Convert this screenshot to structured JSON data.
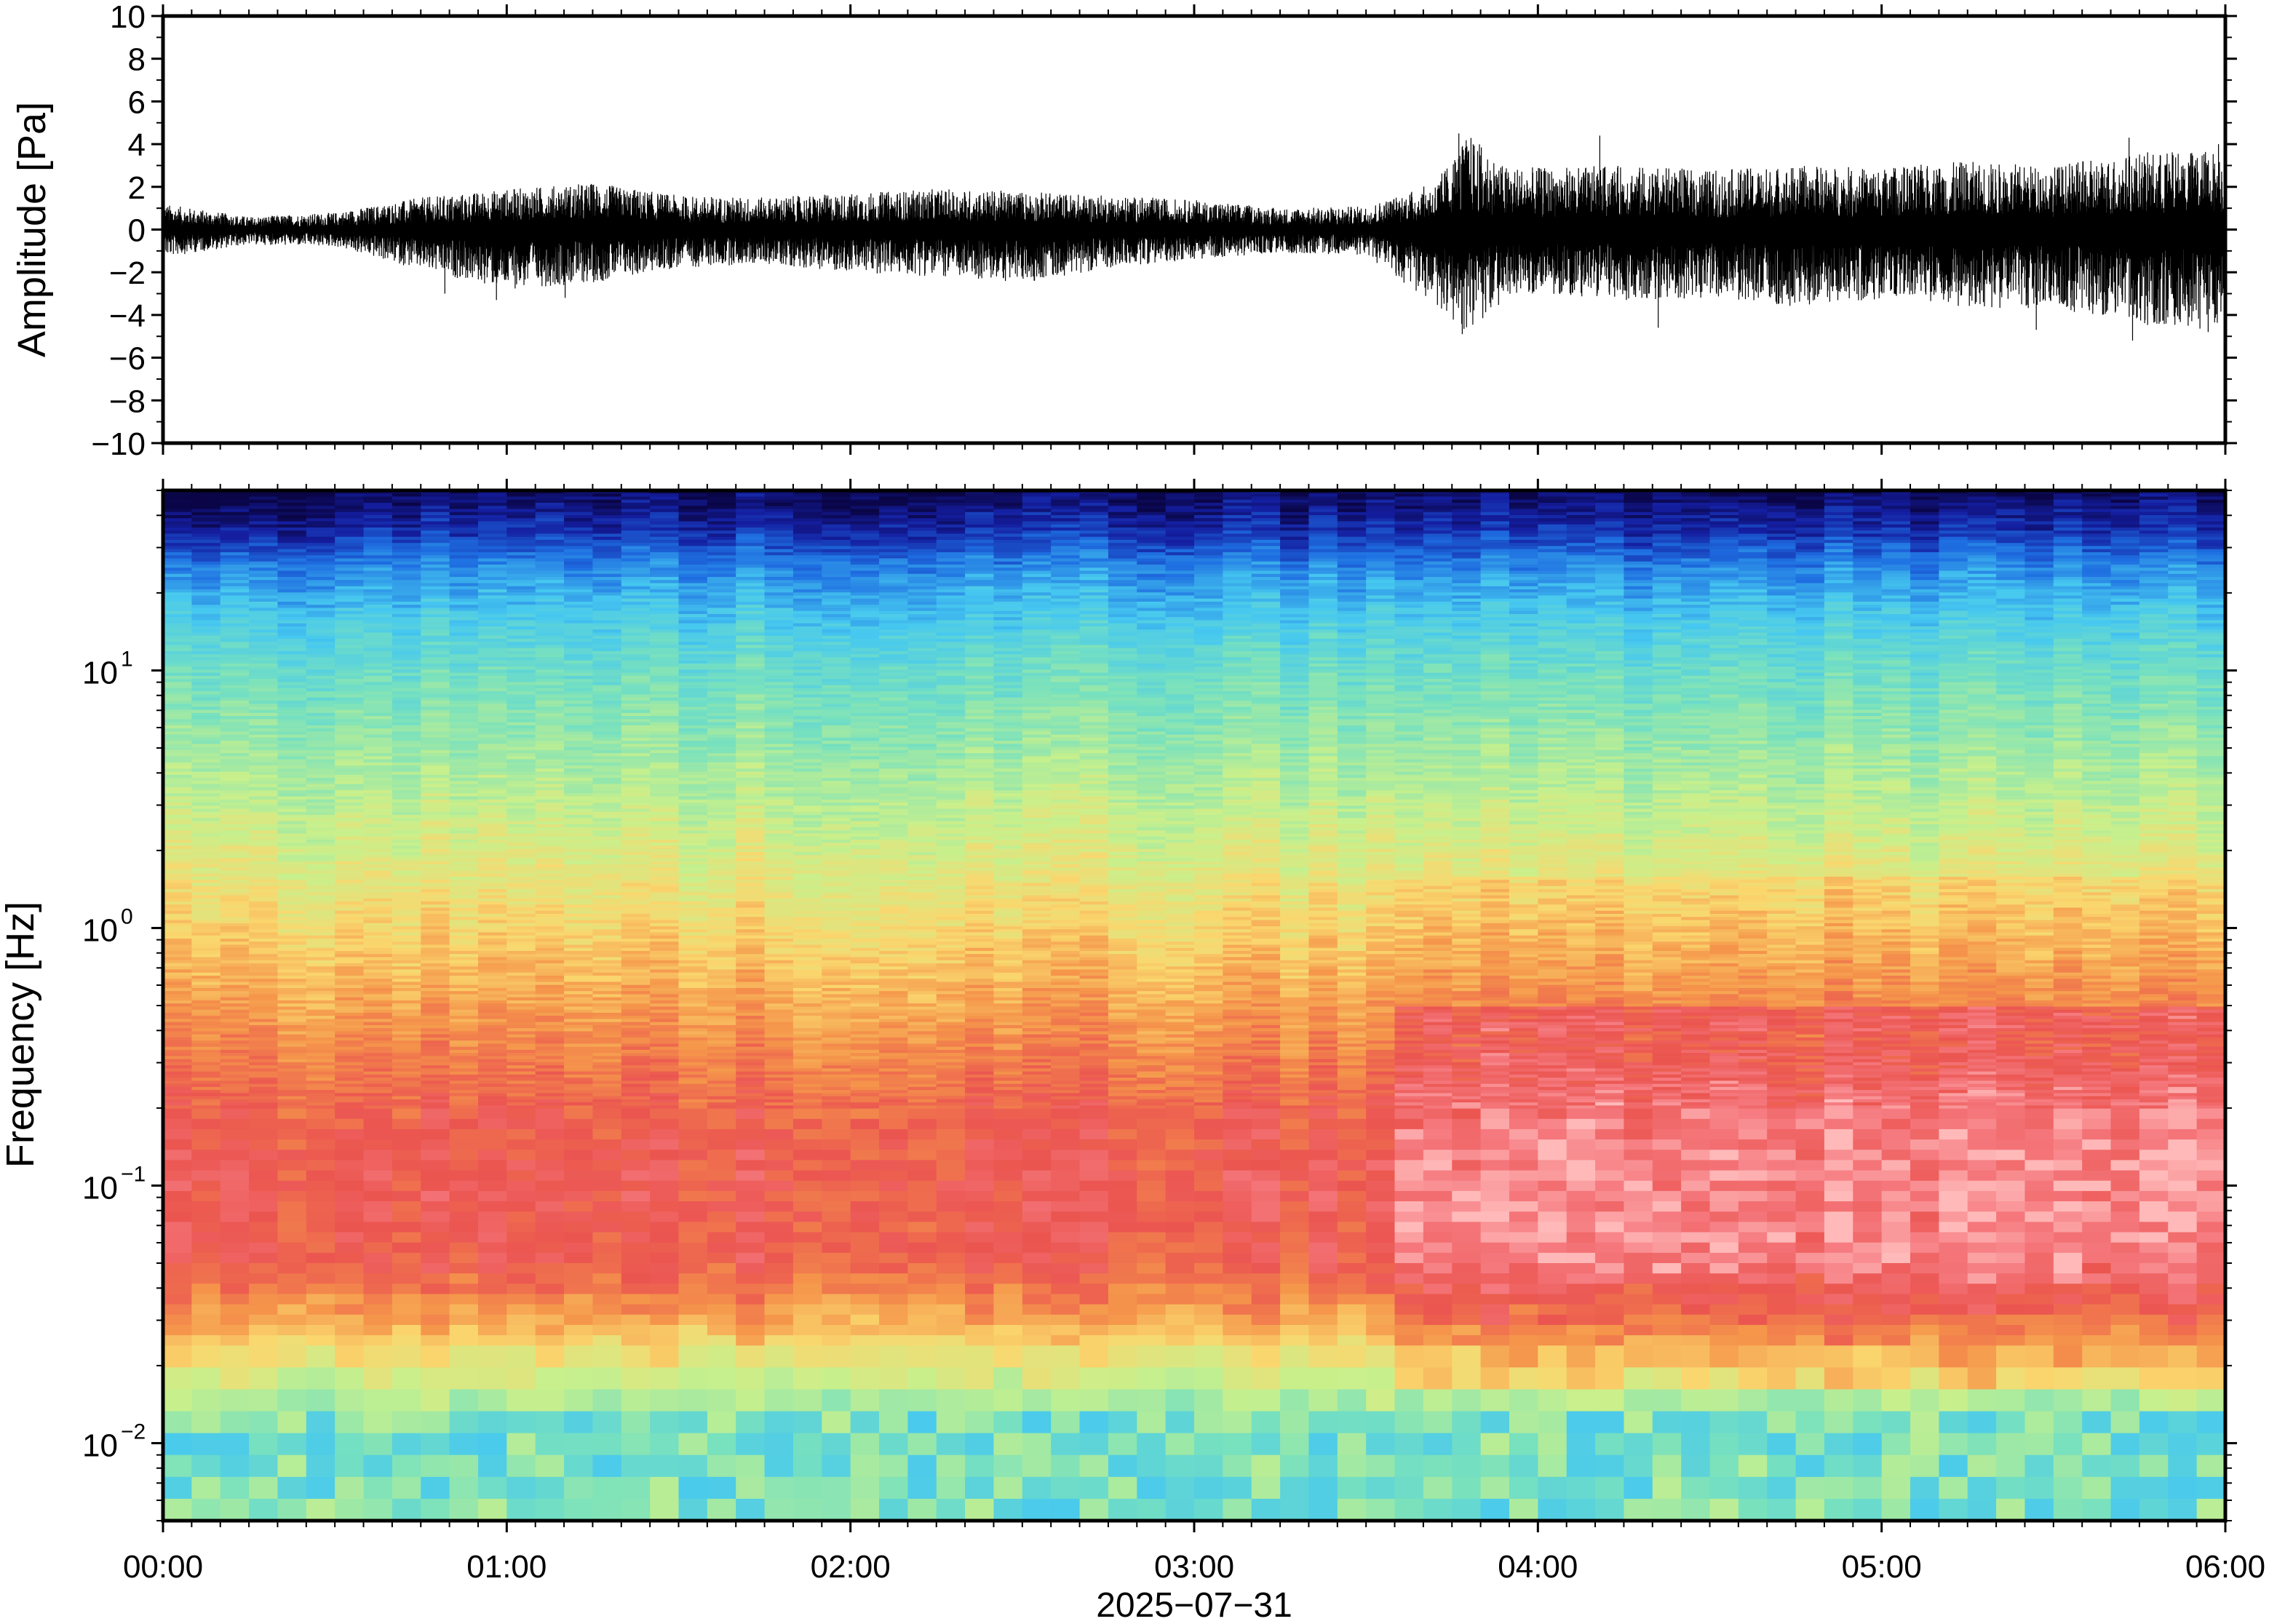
{
  "chart_data": [
    {
      "type": "line",
      "title": "",
      "xlabel": "",
      "ylabel": "Amplitude [Pa]",
      "ylim": [
        -10,
        10
      ],
      "yticks": [
        -10,
        -8,
        -6,
        -4,
        -2,
        0,
        2,
        4,
        6,
        8,
        10
      ],
      "ytick_labels": [
        "−10",
        "−8",
        "−6",
        "−4",
        "−2",
        "0",
        "2",
        "4",
        "6",
        "8",
        "10"
      ],
      "xlim_hours": [
        0,
        6
      ],
      "x_unit": "hours after 2025-07-31 00:00",
      "color": "#000000",
      "envelope": {
        "x": [
          0.0,
          0.25,
          0.5,
          0.75,
          1.0,
          1.25,
          1.5,
          1.75,
          2.0,
          2.25,
          2.5,
          2.75,
          3.0,
          3.25,
          3.5,
          3.7,
          3.8,
          3.9,
          4.0,
          4.25,
          4.5,
          4.75,
          5.0,
          5.25,
          5.5,
          5.75,
          6.0
        ],
        "y_max": [
          1.2,
          0.6,
          0.8,
          1.5,
          1.9,
          2.2,
          1.6,
          1.5,
          1.7,
          1.9,
          1.8,
          1.6,
          1.4,
          1.0,
          1.1,
          2.2,
          4.5,
          3.0,
          2.9,
          3.0,
          2.8,
          3.0,
          2.9,
          3.2,
          3.0,
          3.6,
          3.8
        ],
        "y_min": [
          -1.3,
          -0.7,
          -0.8,
          -1.9,
          -2.8,
          -2.5,
          -1.8,
          -1.6,
          -2.0,
          -2.2,
          -2.5,
          -1.8,
          -1.4,
          -1.1,
          -1.2,
          -3.6,
          -4.9,
          -3.3,
          -3.0,
          -3.3,
          -3.2,
          -3.6,
          -3.3,
          -3.7,
          -3.7,
          -4.5,
          -4.8
        ]
      },
      "spikes": [
        {
          "x": 3.77,
          "y": 4.5
        },
        {
          "x": 3.78,
          "y": -4.9
        },
        {
          "x": 4.18,
          "y": 4.4
        },
        {
          "x": 4.35,
          "y": -4.6
        },
        {
          "x": 5.45,
          "y": -4.7
        },
        {
          "x": 5.72,
          "y": 4.3
        },
        {
          "x": 5.73,
          "y": -5.2
        },
        {
          "x": 5.95,
          "y": -4.8
        },
        {
          "x": 5.98,
          "y": 4.0
        },
        {
          "x": 0.97,
          "y": -3.3
        },
        {
          "x": 1.17,
          "y": -3.2
        },
        {
          "x": 0.82,
          "y": -3.0
        }
      ]
    },
    {
      "type": "heatmap",
      "title": "",
      "xlabel": "",
      "ylabel": "Frequency [Hz]",
      "yscale": "log",
      "ylim": [
        0.005,
        50
      ],
      "yticks": [
        0.01,
        0.1,
        1,
        10
      ],
      "ytick_labels": [
        {
          "base": "10",
          "exp": "−2"
        },
        {
          "base": "10",
          "exp": "−1"
        },
        {
          "base": "10",
          "exp": "0"
        },
        {
          "base": "10",
          "exp": "1"
        }
      ],
      "xlim_hours": [
        0,
        6
      ],
      "x_unit": "hours after 2025-07-31 00:00",
      "xticks": [
        0,
        1,
        2,
        3,
        4,
        5,
        6
      ],
      "colormap": "jet-like (blue = low power, red/pink = high power)",
      "colorbar": "none shown",
      "level_notes": "normalized 0-1: blue near 0 at the highest frequencies (>20 Hz), cyan/green near 10 Hz, yellow/orange near 1 Hz, red 0.03-0.3 Hz, pink patches after 03:40 around 0.03-0.15 Hz, green/cyan band below 0.015 Hz",
      "profile": {
        "log10_f": [
          1.7,
          1.55,
          1.4,
          1.2,
          1.0,
          0.7,
          0.4,
          0.0,
          -0.4,
          -0.7,
          -1.0,
          -1.3,
          -1.5,
          -1.7,
          -1.85,
          -2.0,
          -2.3
        ],
        "level": [
          0.02,
          0.1,
          0.22,
          0.32,
          0.4,
          0.48,
          0.56,
          0.66,
          0.77,
          0.85,
          0.88,
          0.86,
          0.75,
          0.6,
          0.5,
          0.45,
          0.42
        ]
      }
    }
  ],
  "x_axis": {
    "tick_labels": [
      "00:00",
      "01:00",
      "02:00",
      "03:00",
      "04:00",
      "05:00",
      "06:00"
    ],
    "date_label": "2025−07−31"
  }
}
